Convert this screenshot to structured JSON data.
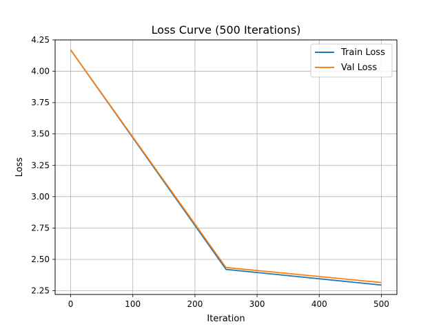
{
  "chart_data": {
    "type": "line",
    "title": "Loss Curve (500 Iterations)",
    "xlabel": "Iteration",
    "ylabel": "Loss",
    "xlim": [
      -25,
      525
    ],
    "ylim": [
      2.22,
      4.25
    ],
    "xticks": [
      0,
      100,
      200,
      300,
      400,
      500
    ],
    "xtick_labels": [
      "0",
      "100",
      "200",
      "300",
      "400",
      "500"
    ],
    "yticks": [
      2.25,
      2.5,
      2.75,
      3.0,
      3.25,
      3.5,
      3.75,
      4.0,
      4.25
    ],
    "ytick_labels": [
      "2.25",
      "2.50",
      "2.75",
      "3.00",
      "3.25",
      "3.50",
      "3.75",
      "4.00",
      "4.25"
    ],
    "grid": true,
    "legend_position": "top-right",
    "series": [
      {
        "name": "Train Loss",
        "color": "#1f77b4",
        "x": [
          0,
          250,
          500
        ],
        "y": [
          4.17,
          2.42,
          2.295
        ]
      },
      {
        "name": "Val Loss",
        "color": "#ff7f0e",
        "x": [
          0,
          250,
          500
        ],
        "y": [
          4.17,
          2.435,
          2.315
        ]
      }
    ]
  }
}
